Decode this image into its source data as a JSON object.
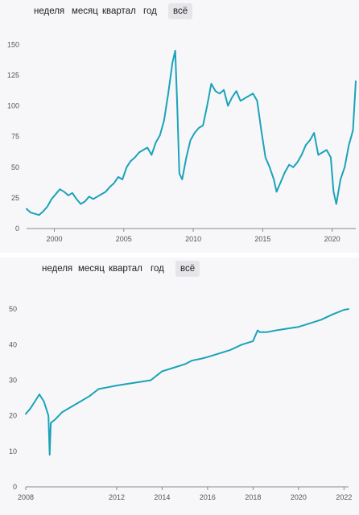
{
  "colors": {
    "line": "#1aa3b8",
    "panel_bg": "#f7f7f9",
    "active_tab_bg": "#e6e6ea",
    "axis": "#888888"
  },
  "tabs_1": [
    {
      "label": "неделя"
    },
    {
      "label": "месяц"
    },
    {
      "label": "квартал"
    },
    {
      "label": "год"
    },
    {
      "label": "всё",
      "active": true
    }
  ],
  "tabs_2": [
    {
      "label": "неделя"
    },
    {
      "label": "месяц"
    },
    {
      "label": "квартал"
    },
    {
      "label": "год"
    },
    {
      "label": "всё",
      "active": true
    }
  ],
  "chart_data": [
    {
      "type": "line",
      "title": "",
      "xlabel": "",
      "ylabel": "",
      "x_range": [
        1998.0,
        2021.7
      ],
      "ylim": [
        0,
        160
      ],
      "yticks": [
        0,
        25,
        50,
        75,
        100,
        125,
        150
      ],
      "xticks": [
        2000,
        2005,
        2010,
        2015,
        2020
      ],
      "grid": false,
      "legend": "none",
      "series": [
        {
          "x": [
            1998.0,
            1998.3,
            1998.6,
            1998.9,
            1999.2,
            1999.5,
            1999.8,
            2000.1,
            2000.4,
            2000.7,
            2001.0,
            2001.3,
            2001.6,
            2001.9,
            2002.2,
            2002.5,
            2002.8,
            2003.1,
            2003.4,
            2003.7,
            2004.0,
            2004.3,
            2004.6,
            2004.9,
            2005.2,
            2005.5,
            2005.8,
            2006.1,
            2006.4,
            2006.7,
            2007.0,
            2007.3,
            2007.6,
            2007.9,
            2008.2,
            2008.5,
            2008.7,
            2008.85,
            2009.0,
            2009.2,
            2009.5,
            2009.8,
            2010.1,
            2010.4,
            2010.7,
            2011.0,
            2011.3,
            2011.6,
            2011.9,
            2012.2,
            2012.5,
            2012.8,
            2013.1,
            2013.4,
            2013.7,
            2014.0,
            2014.3,
            2014.6,
            2014.9,
            2015.2,
            2015.5,
            2015.8,
            2016.0,
            2016.3,
            2016.6,
            2016.9,
            2017.2,
            2017.5,
            2017.8,
            2018.1,
            2018.4,
            2018.7,
            2019.0,
            2019.3,
            2019.6,
            2019.9,
            2020.1,
            2020.3,
            2020.6,
            2020.9,
            2021.2,
            2021.5,
            2021.7
          ],
          "y": [
            16,
            13,
            12,
            11,
            14,
            18,
            24,
            28,
            32,
            30,
            27,
            29,
            24,
            20,
            22,
            26,
            24,
            26,
            28,
            30,
            34,
            37,
            42,
            40,
            50,
            55,
            58,
            62,
            64,
            66,
            60,
            70,
            76,
            88,
            110,
            135,
            145,
            100,
            45,
            40,
            58,
            72,
            78,
            82,
            84,
            100,
            118,
            112,
            110,
            113,
            100,
            107,
            112,
            104,
            106,
            108,
            110,
            104,
            80,
            58,
            50,
            40,
            30,
            38,
            46,
            52,
            50,
            54,
            60,
            68,
            72,
            78,
            60,
            62,
            64,
            58,
            30,
            20,
            40,
            50,
            68,
            80,
            120
          ]
        }
      ]
    },
    {
      "type": "line",
      "title": "",
      "xlabel": "",
      "ylabel": "",
      "x_range": [
        2008.0,
        2022.2
      ],
      "ylim": [
        0,
        55
      ],
      "yticks": [
        0,
        10,
        20,
        30,
        40,
        50
      ],
      "xticks": [
        2008,
        2012,
        2014,
        2016,
        2018,
        2020,
        2022
      ],
      "grid": false,
      "legend": "none",
      "series": [
        {
          "x": [
            2008.0,
            2008.2,
            2008.4,
            2008.6,
            2008.8,
            2008.9,
            2009.0,
            2009.05,
            2009.1,
            2009.3,
            2009.6,
            2010.0,
            2010.4,
            2010.8,
            2011.2,
            2011.6,
            2012.0,
            2012.5,
            2013.0,
            2013.5,
            2013.8,
            2014.0,
            2014.5,
            2015.0,
            2015.3,
            2015.7,
            2016.0,
            2016.5,
            2017.0,
            2017.5,
            2018.0,
            2018.2,
            2018.3,
            2018.6,
            2019.0,
            2019.5,
            2020.0,
            2020.5,
            2021.0,
            2021.5,
            2022.0,
            2022.2
          ],
          "y": [
            20.5,
            22,
            24,
            26,
            24,
            22,
            20,
            9,
            18,
            19,
            21,
            22.5,
            24,
            25.5,
            27.5,
            28,
            28.5,
            29,
            29.5,
            30,
            31.5,
            32.5,
            33.5,
            34.5,
            35.5,
            36,
            36.5,
            37.5,
            38.5,
            40,
            41,
            44,
            43.5,
            43.5,
            44,
            44.5,
            45,
            46,
            47,
            48.5,
            49.8,
            50
          ]
        }
      ]
    }
  ]
}
